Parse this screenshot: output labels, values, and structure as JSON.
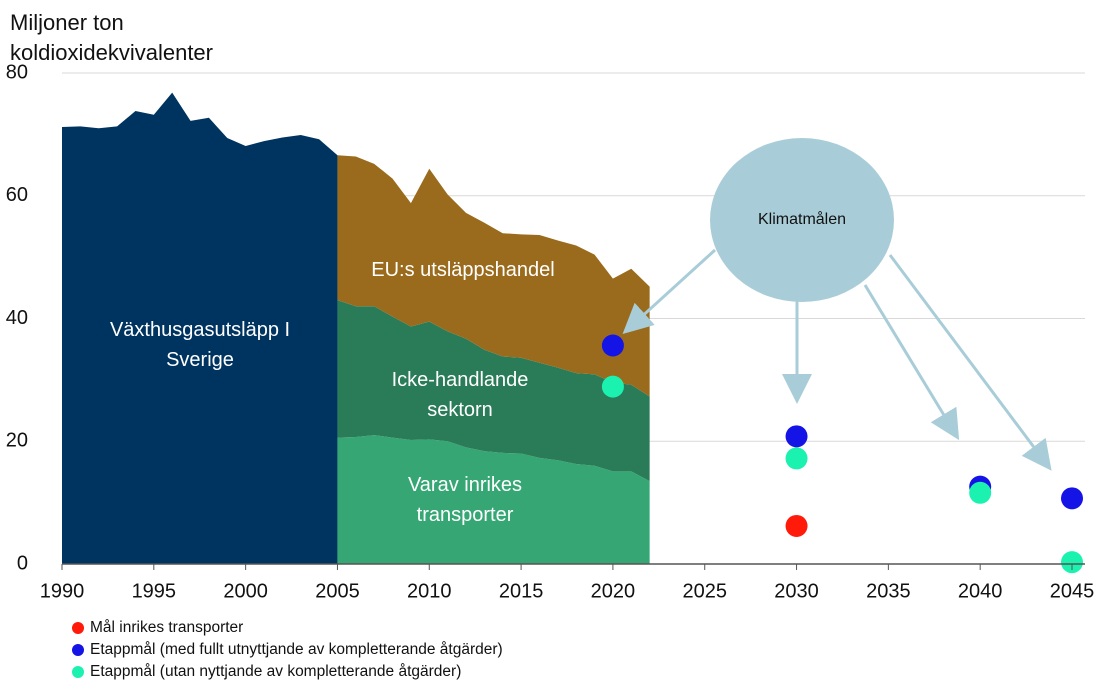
{
  "chart_data": {
    "type": "area",
    "y_label": "Miljoner ton koldioxidekvivalenter",
    "xlim": [
      1990,
      2045
    ],
    "xticks": [
      1990,
      1995,
      2000,
      2005,
      2010,
      2015,
      2020,
      2025,
      2030,
      2035,
      2040,
      2045
    ],
    "ylim": [
      0,
      80
    ],
    "yticks": [
      0,
      20,
      40,
      60,
      80
    ],
    "grid": true,
    "annotation": "Klimatmålen",
    "series": [
      {
        "name": "Växthusgasutsläpp I Sverige",
        "type": "area",
        "color": "#003460",
        "x": [
          1990,
          1991,
          1992,
          1993,
          1994,
          1995,
          1996,
          1997,
          1998,
          1999,
          2000,
          2001,
          2002,
          2003,
          2004,
          2005
        ],
        "values": [
          71.2,
          71.3,
          71.0,
          71.3,
          73.8,
          73.2,
          76.8,
          72.2,
          72.7,
          69.4,
          68.1,
          68.9,
          69.5,
          69.9,
          69.2,
          66.6
        ]
      },
      {
        "name": "Varav inrikes transporter",
        "type": "area",
        "color": "#36a774",
        "x": [
          2005,
          2006,
          2007,
          2008,
          2009,
          2010,
          2011,
          2012,
          2013,
          2014,
          2015,
          2016,
          2017,
          2018,
          2019,
          2020,
          2021,
          2022
        ],
        "values": [
          20.6,
          20.7,
          21.0,
          20.6,
          20.2,
          20.3,
          20.0,
          19.0,
          18.4,
          18.1,
          18.0,
          17.3,
          16.9,
          16.3,
          16.0,
          15.1,
          15.1,
          13.5
        ]
      },
      {
        "name": "Icke-handlande sektorn",
        "type": "area",
        "color": "#2a7b58",
        "x": [
          2005,
          2006,
          2007,
          2008,
          2009,
          2010,
          2011,
          2012,
          2013,
          2014,
          2015,
          2016,
          2017,
          2018,
          2019,
          2020,
          2021,
          2022
        ],
        "values": [
          22.4,
          21.3,
          21.0,
          19.7,
          18.5,
          19.2,
          17.9,
          17.7,
          16.5,
          15.7,
          15.6,
          15.5,
          15.1,
          14.8,
          14.9,
          14.5,
          14.1,
          13.8
        ]
      },
      {
        "name": "EU:s utsläppshandel",
        "type": "area",
        "color": "#9a6b1c",
        "x": [
          2005,
          2006,
          2007,
          2008,
          2009,
          2010,
          2011,
          2012,
          2013,
          2014,
          2015,
          2016,
          2017,
          2018,
          2019,
          2020,
          2021,
          2022
        ],
        "values": [
          23.6,
          24.4,
          23.2,
          22.5,
          20.1,
          24.9,
          22.3,
          20.5,
          20.7,
          20.1,
          20.1,
          20.8,
          20.7,
          20.8,
          19.5,
          16.9,
          18.9,
          17.9
        ]
      },
      {
        "name": "Mål inrikes transporter",
        "type": "scatter",
        "color": "#ff1a0a",
        "x": [
          2030
        ],
        "values": [
          6.2
        ]
      },
      {
        "name": "Etappmål (med fullt utnyttjande av kompletterande åtgärder)",
        "type": "scatter",
        "color": "#1414e6",
        "x": [
          2020,
          2030,
          2040,
          2045
        ],
        "values": [
          35.6,
          20.8,
          12.6,
          10.7
        ]
      },
      {
        "name": "Etappmål (utan nyttjande av kompletterande åtgärder)",
        "type": "scatter",
        "color": "#1cf2b0",
        "x": [
          2020,
          2030,
          2040,
          2045
        ],
        "values": [
          28.9,
          17.2,
          11.6,
          0.3
        ]
      }
    ]
  }
}
